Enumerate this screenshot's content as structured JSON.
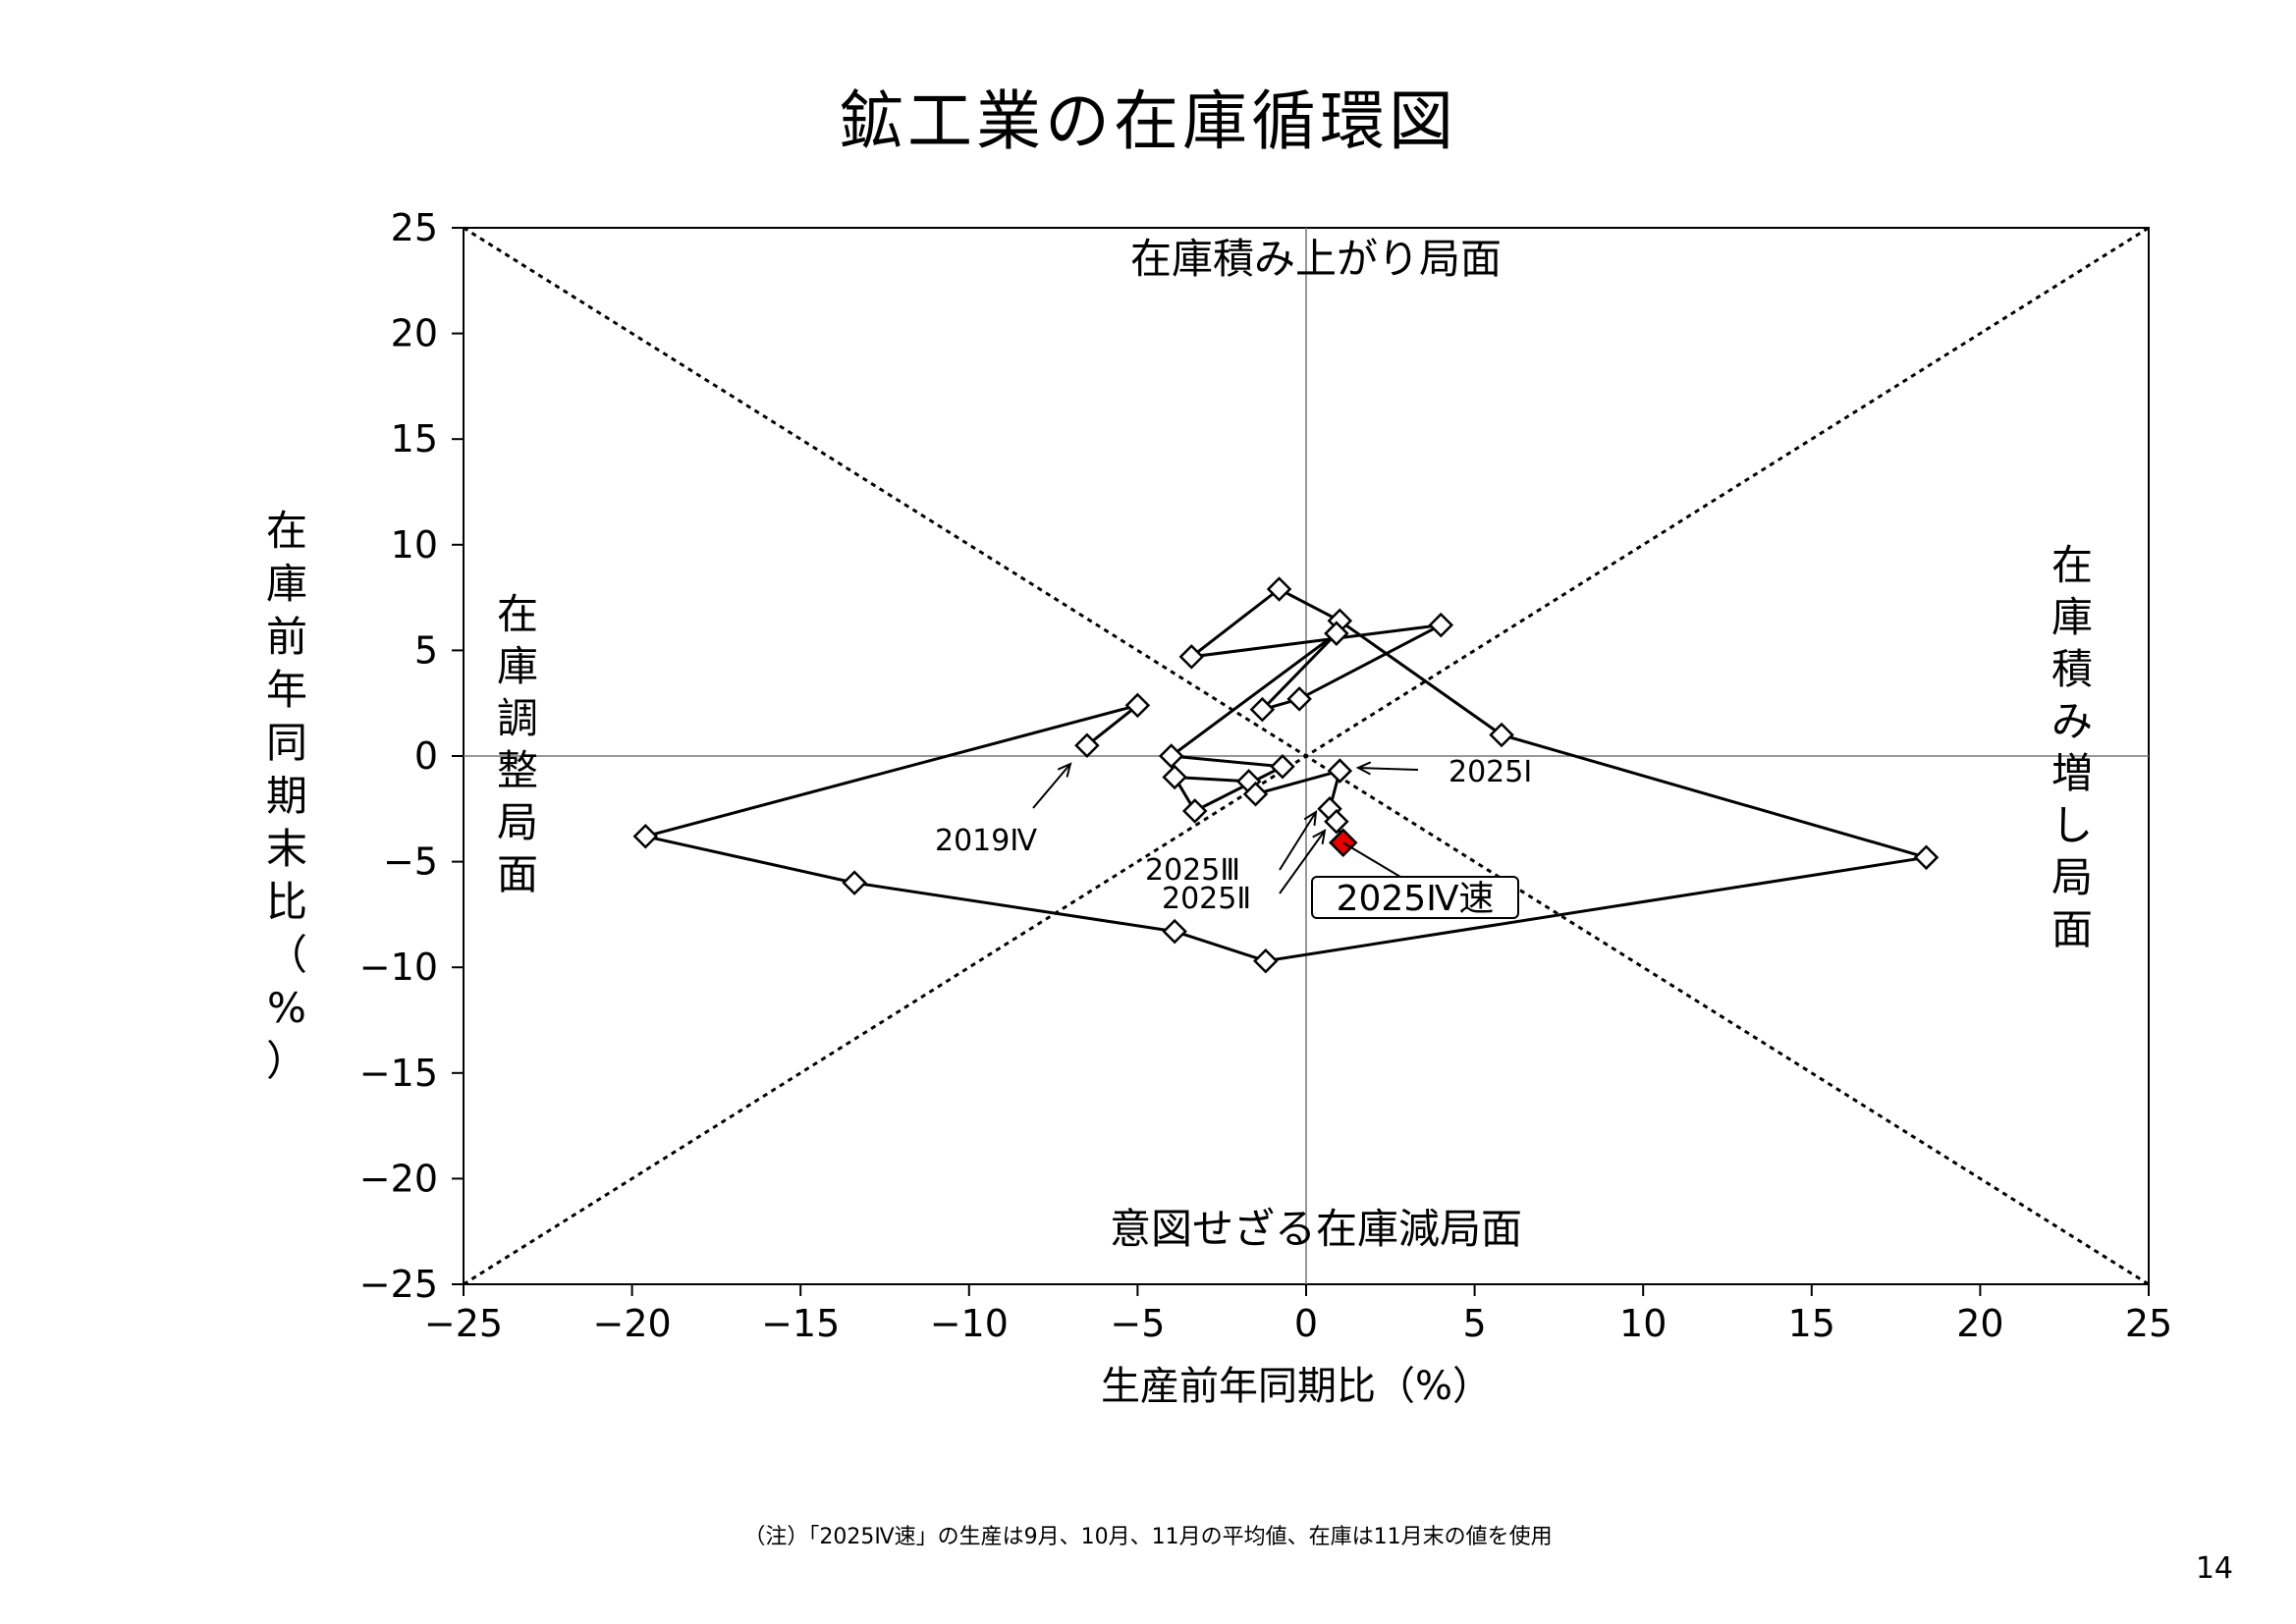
{
  "page": {
    "title": "鉱工業の在庫循環図",
    "note": "（注）「2025Ⅳ速」の生産は9月、10月、11月の平均値、在庫は11月末の値を使用",
    "page_number": "14"
  },
  "chart_data": {
    "type": "scatter",
    "xlabel": "生産前年同期比（%）",
    "ylabel": "在庫前年同期末比（%）",
    "xlim": [
      -25,
      25
    ],
    "ylim": [
      -25,
      25
    ],
    "xticks": [
      -25,
      -20,
      -15,
      -10,
      -5,
      0,
      5,
      10,
      15,
      20,
      25
    ],
    "yticks": [
      -25,
      -20,
      -15,
      -10,
      -5,
      0,
      5,
      10,
      15,
      20,
      25
    ],
    "grid": false,
    "colors": {
      "line": "#000000",
      "marker_fill": "#ffffff",
      "highlight": "#e60000"
    },
    "regions": [
      {
        "name": "在庫積み上がり局面",
        "position": "top"
      },
      {
        "name": "在庫調整局面",
        "position": "left",
        "vertical": true
      },
      {
        "name": "在庫積み増し局面",
        "position": "right",
        "vertical": true
      },
      {
        "name": "意図せざる在庫減局面",
        "position": "bottom"
      }
    ],
    "points": [
      {
        "x": -6.5,
        "y": 0.5
      },
      {
        "x": -5.0,
        "y": 2.4
      },
      {
        "x": -19.6,
        "y": -3.8
      },
      {
        "x": -13.4,
        "y": -6.0
      },
      {
        "x": -3.9,
        "y": -8.3
      },
      {
        "x": -1.2,
        "y": -9.7
      },
      {
        "x": 18.4,
        "y": -4.8
      },
      {
        "x": 5.8,
        "y": 1.0
      },
      {
        "x": 1.0,
        "y": 6.4
      },
      {
        "x": -0.8,
        "y": 7.9
      },
      {
        "x": -3.4,
        "y": 4.7
      },
      {
        "x": 4.0,
        "y": 6.2
      },
      {
        "x": -0.2,
        "y": 2.7
      },
      {
        "x": -1.3,
        "y": 2.2
      },
      {
        "x": 0.9,
        "y": 5.8
      },
      {
        "x": -4.0,
        "y": 0.0
      },
      {
        "x": -0.7,
        "y": -0.5
      },
      {
        "x": -3.3,
        "y": -2.6
      },
      {
        "x": -3.9,
        "y": -1.0
      },
      {
        "x": -1.7,
        "y": -1.2
      },
      {
        "x": -1.5,
        "y": -1.8
      },
      {
        "x": 1.0,
        "y": -0.7
      },
      {
        "x": 0.7,
        "y": -2.5
      },
      {
        "x": 0.9,
        "y": -3.1
      },
      {
        "x": 1.1,
        "y": -4.1,
        "highlight": true
      }
    ],
    "labels": {
      "p2019q4": "2019Ⅳ",
      "p2025q1": "2025Ⅰ",
      "p2025q2": "2025Ⅱ",
      "p2025q3": "2025Ⅲ",
      "p2025q4": "2025Ⅳ速"
    }
  }
}
